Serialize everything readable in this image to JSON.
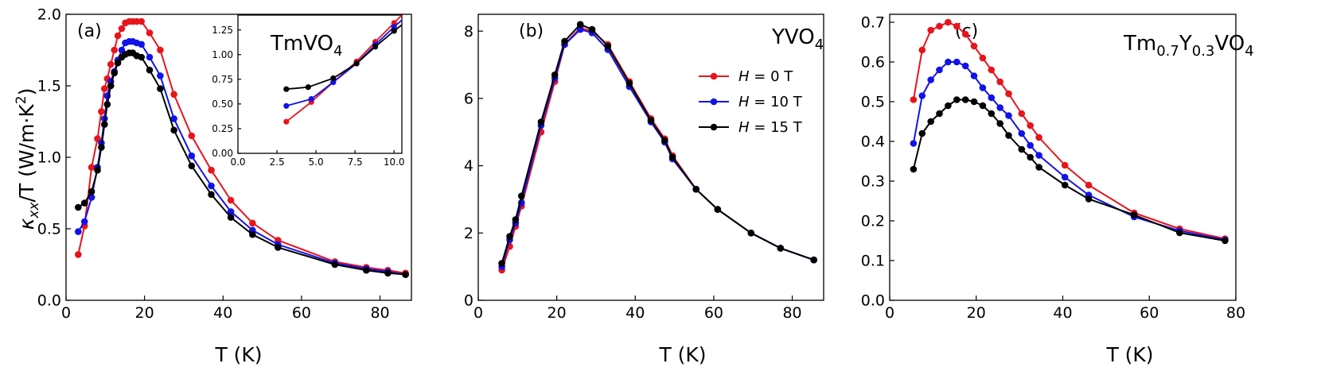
{
  "colors": {
    "h0": "#e8141b",
    "h10": "#1212e8",
    "h15": "#000000",
    "axis": "#000000"
  },
  "legend": [
    {
      "italic": "H",
      "text": " = 0 T",
      "color": "#e8141b"
    },
    {
      "italic": "H",
      "text": " = 10 T",
      "color": "#1212e8"
    },
    {
      "italic": "H",
      "text": " = 15 T",
      "color": "#000000"
    }
  ],
  "chart_data": [
    {
      "type": "line",
      "panel_label": "(a)",
      "material": {
        "base": "TmVO",
        "sub": "4",
        "tail": ""
      },
      "xlabel": "T (K)",
      "ylabel": {
        "kappa": "κ",
        "sub": "xx",
        "rest": "/T (W/m·K",
        "sup": "2",
        "close": ")"
      },
      "xlim": [
        0,
        88
      ],
      "ylim": [
        0,
        2.0
      ],
      "xticks": [
        "0",
        "20",
        "40",
        "60",
        "80"
      ],
      "yticks": [
        "0.0",
        "0.5",
        "1.0",
        "1.5",
        "2.0"
      ],
      "series": [
        {
          "name": "H = 0 T",
          "color": "#e8141b",
          "x": [
            3.1,
            4.7,
            6.5,
            8.0,
            9.0,
            9.8,
            10.5,
            11.4,
            12.3,
            13.2,
            14.2,
            15.1,
            16.1,
            17.0,
            18.0,
            19.2,
            21.3,
            24.0,
            27.5,
            32.0,
            37.0,
            42.0,
            47.5,
            54.0,
            68.5,
            76.5,
            82.0,
            86.5
          ],
          "y": [
            0.32,
            0.52,
            0.93,
            1.13,
            1.32,
            1.48,
            1.55,
            1.65,
            1.75,
            1.85,
            1.9,
            1.94,
            1.95,
            1.95,
            1.95,
            1.95,
            1.87,
            1.75,
            1.44,
            1.15,
            0.91,
            0.7,
            0.54,
            0.42,
            0.27,
            0.23,
            0.21,
            0.19
          ]
        },
        {
          "name": "H = 10 T",
          "color": "#1212e8",
          "x": [
            3.1,
            4.7,
            6.5,
            8.0,
            9.0,
            9.8,
            10.5,
            11.4,
            12.3,
            13.2,
            14.2,
            15.1,
            16.1,
            17.0,
            18.0,
            19.2,
            21.3,
            24.0,
            27.5,
            32.0,
            37.0,
            42.0,
            47.5,
            54.0,
            68.5,
            76.5,
            82.0,
            86.5
          ],
          "y": [
            0.48,
            0.55,
            0.72,
            0.93,
            1.1,
            1.27,
            1.43,
            1.53,
            1.6,
            1.68,
            1.75,
            1.8,
            1.81,
            1.81,
            1.8,
            1.79,
            1.7,
            1.57,
            1.27,
            1.01,
            0.8,
            0.62,
            0.49,
            0.39,
            0.26,
            0.22,
            0.2,
            0.18
          ]
        },
        {
          "name": "H = 15 T",
          "color": "#000000",
          "x": [
            3.1,
            4.7,
            6.5,
            8.0,
            9.0,
            9.8,
            10.5,
            11.4,
            12.3,
            13.2,
            14.2,
            15.1,
            16.1,
            17.0,
            18.0,
            19.2,
            21.3,
            24.0,
            27.5,
            32.0,
            37.0,
            42.0,
            47.5,
            54.0,
            68.5,
            76.5,
            82.0,
            86.5
          ],
          "y": [
            0.65,
            0.68,
            0.76,
            0.91,
            1.07,
            1.23,
            1.37,
            1.5,
            1.59,
            1.66,
            1.7,
            1.72,
            1.73,
            1.73,
            1.71,
            1.7,
            1.61,
            1.48,
            1.19,
            0.94,
            0.74,
            0.58,
            0.46,
            0.37,
            0.25,
            0.21,
            0.19,
            0.18
          ]
        }
      ],
      "inset": {
        "xlim": [
          0,
          10.5
        ],
        "ylim": [
          0,
          1.4
        ],
        "xticks": [
          "0.0",
          "2.5",
          "5.0",
          "7.5",
          "10.0"
        ],
        "yticks": [
          "0.00",
          "0.25",
          "0.50",
          "0.75",
          "1.00",
          "1.25"
        ],
        "series": [
          {
            "name": "H = 0 T",
            "color": "#e8141b",
            "x": [
              3.1,
              4.7,
              6.1,
              7.6,
              8.8,
              10.0,
              10.5
            ],
            "y": [
              0.32,
              0.52,
              0.72,
              0.93,
              1.13,
              1.32,
              1.4
            ]
          },
          {
            "name": "H = 10 T",
            "color": "#1212e8",
            "x": [
              3.1,
              4.7,
              6.1,
              7.6,
              8.8,
              10.0,
              10.5
            ],
            "y": [
              0.48,
              0.55,
              0.72,
              0.91,
              1.1,
              1.28,
              1.35
            ]
          },
          {
            "name": "H = 15 T",
            "color": "#000000",
            "x": [
              3.1,
              4.5,
              6.1,
              7.6,
              8.8,
              10.0,
              10.5
            ],
            "y": [
              0.65,
              0.67,
              0.76,
              0.91,
              1.08,
              1.24,
              1.3
            ]
          }
        ]
      }
    },
    {
      "type": "line",
      "panel_label": "(b)",
      "material": {
        "base": "YVO",
        "sub": "4",
        "tail": ""
      },
      "xlabel": "T (K)",
      "xlim": [
        0,
        88
      ],
      "ylim": [
        0,
        8.5
      ],
      "xticks": [
        "0",
        "20",
        "40",
        "60",
        "80"
      ],
      "yticks": [
        "0",
        "2",
        "4",
        "6",
        "8"
      ],
      "series": [
        {
          "name": "H = 0 T",
          "color": "#e8141b",
          "x": [
            6.0,
            8.0,
            9.5,
            11.0,
            16.0,
            19.5,
            22.0,
            26.0,
            29.0,
            33.0,
            38.5,
            44.0,
            47.5,
            49.5,
            55.5,
            61.0,
            69.5,
            77.0,
            85.5
          ],
          "y": [
            0.9,
            1.6,
            2.2,
            2.8,
            5.0,
            6.5,
            7.6,
            8.1,
            8.0,
            7.6,
            6.5,
            5.4,
            4.8,
            4.3,
            3.3,
            2.7,
            2.0,
            1.55,
            1.2
          ]
        },
        {
          "name": "H = 10 T",
          "color": "#1212e8",
          "x": [
            6.0,
            8.0,
            9.5,
            11.0,
            16.0,
            19.5,
            22.0,
            26.0,
            29.0,
            33.0,
            38.5,
            44.0,
            47.5,
            49.5,
            55.5,
            61.0,
            69.5,
            77.0,
            85.5
          ],
          "y": [
            1.0,
            1.8,
            2.3,
            2.9,
            5.2,
            6.6,
            7.6,
            8.05,
            7.95,
            7.45,
            6.35,
            5.3,
            4.7,
            4.2,
            3.3,
            2.7,
            2.0,
            1.55,
            1.2
          ]
        },
        {
          "name": "H = 15 T",
          "color": "#000000",
          "x": [
            6.0,
            8.0,
            9.5,
            11.0,
            16.0,
            19.5,
            22.0,
            26.0,
            29.0,
            33.0,
            38.5,
            44.0,
            47.5,
            49.5,
            55.5,
            61.0,
            69.5,
            77.0,
            85.5
          ],
          "y": [
            1.1,
            1.9,
            2.4,
            3.1,
            5.3,
            6.7,
            7.7,
            8.2,
            8.05,
            7.55,
            6.45,
            5.35,
            4.75,
            4.25,
            3.3,
            2.7,
            2.0,
            1.55,
            1.2
          ]
        }
      ]
    },
    {
      "type": "line",
      "panel_label": "(c)",
      "material": {
        "base": "Tm",
        "parts": [
          [
            "Tm",
            ""
          ],
          [
            "0.7",
            "sub"
          ],
          [
            "Y",
            ""
          ],
          [
            "0.3",
            "sub"
          ],
          [
            "VO",
            ""
          ],
          [
            "4",
            "sub"
          ]
        ]
      },
      "xlabel": "T (K)",
      "xlim": [
        0,
        80
      ],
      "ylim": [
        0,
        0.72
      ],
      "xticks": [
        "0",
        "20",
        "40",
        "60",
        "80"
      ],
      "yticks": [
        "0.0",
        "0.1",
        "0.2",
        "0.3",
        "0.4",
        "0.5",
        "0.6",
        "0.7"
      ],
      "series": [
        {
          "name": "H = 0 T",
          "color": "#e8141b",
          "x": [
            5.5,
            7.5,
            9.5,
            11.5,
            13.5,
            15.5,
            17.5,
            19.5,
            21.5,
            23.5,
            25.5,
            27.5,
            30.5,
            32.5,
            34.5,
            40.5,
            46.0,
            56.5,
            67.0,
            77.5
          ],
          "y": [
            0.505,
            0.63,
            0.68,
            0.69,
            0.7,
            0.69,
            0.67,
            0.64,
            0.61,
            0.58,
            0.55,
            0.52,
            0.47,
            0.44,
            0.41,
            0.34,
            0.29,
            0.22,
            0.18,
            0.155
          ]
        },
        {
          "name": "H = 10 T",
          "color": "#1212e8",
          "x": [
            5.5,
            7.5,
            9.5,
            11.5,
            13.5,
            15.5,
            17.5,
            19.5,
            21.5,
            23.5,
            25.5,
            27.5,
            30.5,
            32.5,
            34.5,
            40.5,
            46.0,
            56.5,
            67.0,
            77.5
          ],
          "y": [
            0.395,
            0.515,
            0.555,
            0.58,
            0.6,
            0.6,
            0.59,
            0.565,
            0.535,
            0.51,
            0.485,
            0.465,
            0.42,
            0.39,
            0.365,
            0.31,
            0.265,
            0.21,
            0.175,
            0.152
          ]
        },
        {
          "name": "H = 15 T",
          "color": "#000000",
          "x": [
            5.5,
            7.5,
            9.5,
            11.5,
            13.5,
            15.5,
            17.5,
            19.5,
            21.5,
            23.5,
            25.5,
            27.5,
            30.5,
            32.5,
            34.5,
            40.5,
            46.0,
            56.5,
            67.0,
            77.5
          ],
          "y": [
            0.33,
            0.42,
            0.45,
            0.47,
            0.49,
            0.505,
            0.505,
            0.5,
            0.49,
            0.47,
            0.445,
            0.415,
            0.38,
            0.36,
            0.335,
            0.29,
            0.255,
            0.215,
            0.17,
            0.15
          ]
        }
      ]
    }
  ]
}
